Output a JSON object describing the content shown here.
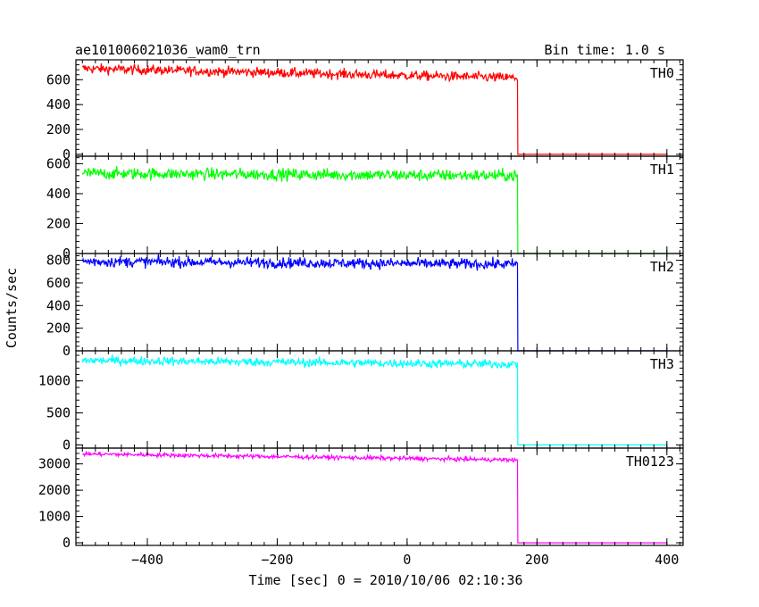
{
  "header": {
    "title": "ae101006021036_wam0_trn",
    "bin_time": "Bin time: 1.0 s"
  },
  "chart_data": {
    "type": "line",
    "xlabel": "Time [sec] 0 = 2010/10/06 02:10:36",
    "ylabel": "Counts/sec",
    "xlim": [
      -510,
      425
    ],
    "xticks": [
      -400,
      -200,
      0,
      200,
      400
    ],
    "xtick_labels": [
      "−400",
      "−200",
      "0",
      "200",
      "400"
    ],
    "x_start": -500,
    "x_drop": 170,
    "x_end": 400,
    "series": [
      {
        "name": "TH0",
        "color": "#ff0000",
        "ylim": [
          -15,
          760
        ],
        "yticks": [
          0,
          200,
          400,
          600
        ],
        "level_start": 690,
        "level_end": 615,
        "noise": 28,
        "post": 0
      },
      {
        "name": "TH1",
        "color": "#00ff00",
        "ylim": [
          0,
          650
        ],
        "yticks": [
          0,
          200,
          400,
          600
        ],
        "level_start": 535,
        "level_end": 520,
        "noise": 28,
        "post": 0
      },
      {
        "name": "TH2",
        "color": "#0000ff",
        "ylim": [
          0,
          860
        ],
        "yticks": [
          0,
          200,
          400,
          600,
          800
        ],
        "level_start": 790,
        "level_end": 765,
        "noise": 33,
        "post": 0
      },
      {
        "name": "TH3",
        "color": "#00ffff",
        "ylim": [
          -50,
          1470
        ],
        "yticks": [
          0,
          500,
          1000
        ],
        "level_start": 1320,
        "level_end": 1260,
        "noise": 48,
        "post": 0
      },
      {
        "name": "TH0123",
        "color": "#ff00ff",
        "ylim": [
          -100,
          3600
        ],
        "yticks": [
          0,
          1000,
          2000,
          3000
        ],
        "level_start": 3380,
        "level_end": 3150,
        "noise": 55,
        "post": 0
      }
    ]
  }
}
